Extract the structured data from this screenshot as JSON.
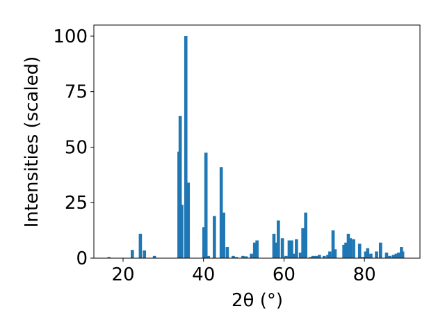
{
  "chart_data": {
    "type": "bar",
    "color": "#1f77b4",
    "xlabel": "2θ (°)",
    "ylabel": "Intensities (scaled)",
    "x": [
      16.5,
      22.3,
      24.3,
      25.3,
      27.8,
      33.9,
      34.2,
      34.6,
      35.6,
      36.2,
      40.1,
      40.6,
      41.2,
      42.7,
      44.4,
      45.0,
      45.9,
      47.4,
      48.2,
      49.8,
      50.6,
      51.9,
      52.7,
      53.3,
      57.5,
      58.0,
      58.6,
      59.6,
      60.5,
      61.3,
      61.9,
      62.5,
      63.1,
      64.1,
      64.7,
      65.4,
      66.6,
      67.2,
      68.0,
      68.8,
      70.0,
      70.9,
      71.4,
      72.2,
      72.7,
      74.9,
      75.4,
      76.0,
      76.5,
      77.3,
      78.8,
      79.5,
      80.3,
      80.8,
      81.6,
      83.0,
      84.0,
      85.5,
      86.3,
      87.2,
      87.9,
      88.5,
      89.2,
      89.5
    ],
    "values": [
      0.5,
      3.7,
      11,
      3.5,
      1,
      48,
      64,
      24,
      100,
      34,
      14,
      47.5,
      1,
      19,
      41,
      20.5,
      5,
      1,
      0.5,
      1,
      0.8,
      2,
      7,
      8,
      11,
      7,
      17,
      9,
      1,
      8,
      8,
      2,
      8.5,
      2.5,
      13.5,
      20.5,
      0.5,
      1,
      1,
      1.5,
      1,
      1.5,
      3,
      12.5,
      4,
      6,
      7,
      11,
      9,
      8.5,
      6.5,
      0.5,
      3,
      4.5,
      2,
      3,
      7,
      2.5,
      1,
      1.5,
      2,
      2.5,
      5,
      3
    ],
    "xlim": [
      12.74,
      93.8
    ],
    "ylim": [
      0,
      105
    ],
    "xticks": [
      20,
      40,
      60,
      80
    ],
    "yticks": [
      0,
      25,
      50,
      75,
      100
    ]
  }
}
